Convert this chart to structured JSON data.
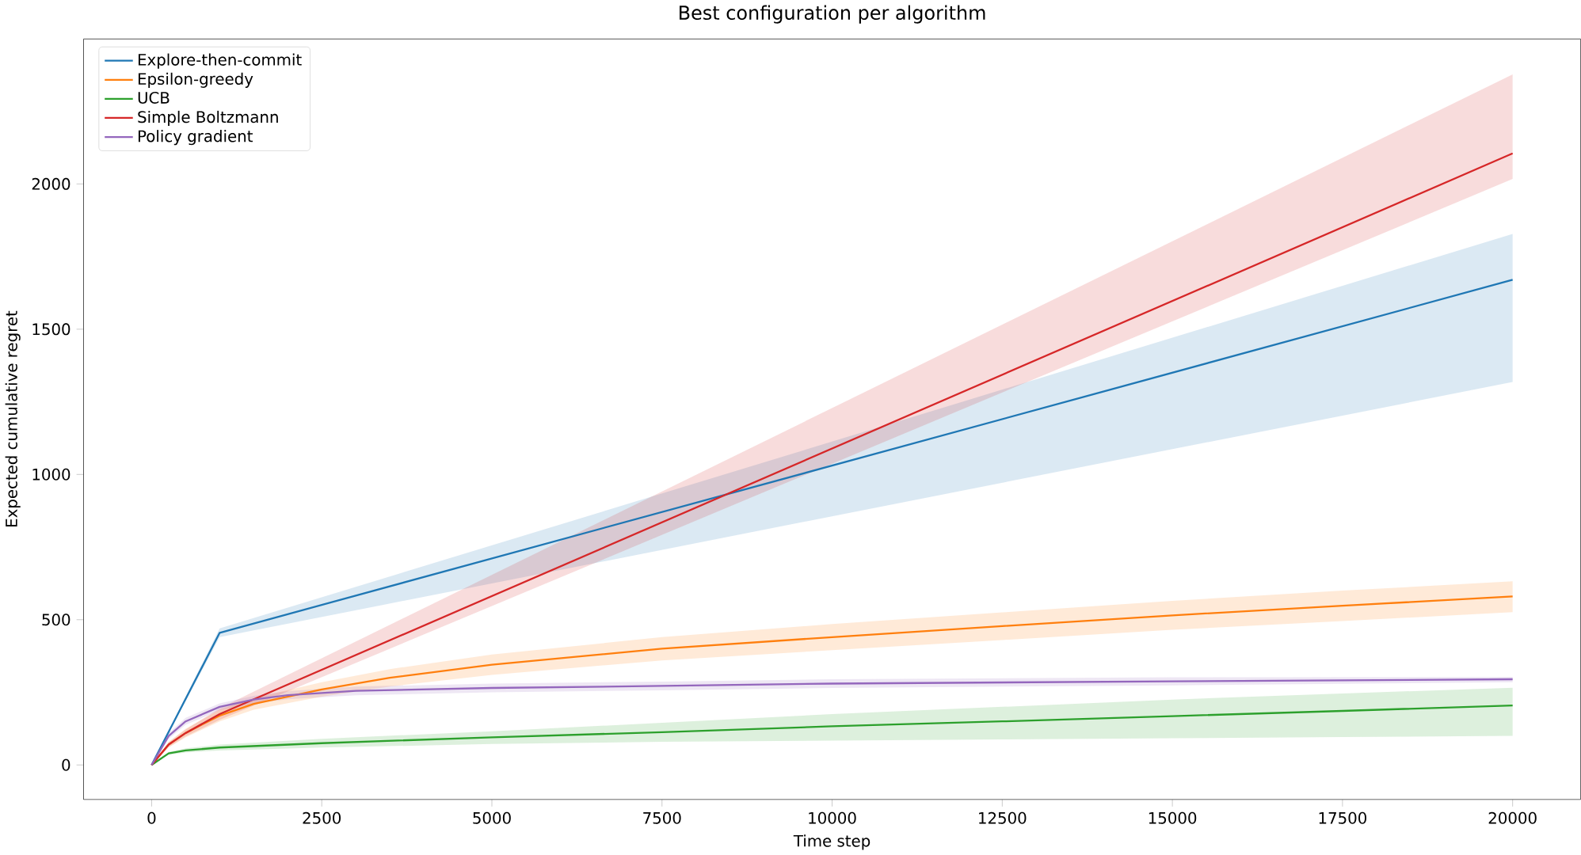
{
  "chart_data": {
    "type": "line",
    "title": "Best configuration per algorithm",
    "xlabel": "Time step",
    "ylabel": "Expected cumulative regret",
    "xlim": [
      -1000,
      21000
    ],
    "ylim": [
      -119,
      2499
    ],
    "xticks": [
      0,
      2500,
      5000,
      7500,
      10000,
      12500,
      15000,
      17500,
      20000
    ],
    "yticks": [
      0,
      500,
      1000,
      1500,
      2000
    ],
    "legend": "top left",
    "grid": false,
    "marker": "none",
    "line_style": "solid",
    "series": [
      {
        "name": "Explore-then-commit",
        "color": "#1f77b4",
        "x": [
          0,
          1000,
          20000
        ],
        "values": [
          0,
          455,
          1670
        ],
        "lower": [
          0,
          440,
          1318
        ],
        "upper": [
          0,
          470,
          1828
        ]
      },
      {
        "name": "Epsilon-greedy",
        "color": "#ff7f0e",
        "x": [
          0,
          250,
          500,
          1000,
          1500,
          2500,
          3500,
          5000,
          7500,
          10000,
          12500,
          15000,
          17500,
          20000
        ],
        "values": [
          0,
          70,
          110,
          170,
          210,
          260,
          300,
          345,
          400,
          440,
          478,
          515,
          548,
          580
        ],
        "lower": [
          0,
          60,
          95,
          150,
          190,
          235,
          270,
          310,
          360,
          395,
          430,
          465,
          495,
          526
        ],
        "upper": [
          0,
          80,
          125,
          190,
          230,
          285,
          330,
          380,
          440,
          485,
          525,
          565,
          600,
          632
        ]
      },
      {
        "name": "UCB",
        "color": "#2ca02c",
        "x": [
          0,
          250,
          500,
          1000,
          2500,
          5000,
          7500,
          10000,
          12500,
          15000,
          17500,
          20000
        ],
        "values": [
          0,
          40,
          50,
          60,
          75,
          95,
          113,
          133,
          150,
          168,
          186,
          205
        ],
        "lower": [
          0,
          35,
          43,
          50,
          60,
          72,
          80,
          84,
          88,
          92,
          96,
          100
        ],
        "upper": [
          0,
          45,
          57,
          70,
          90,
          116,
          145,
          175,
          200,
          225,
          246,
          266
        ]
      },
      {
        "name": "Simple Boltzmann",
        "color": "#d62728",
        "x": [
          0,
          250,
          500,
          1000,
          20000
        ],
        "values": [
          0,
          70,
          110,
          175,
          2105
        ],
        "lower": [
          0,
          62,
          98,
          155,
          2017
        ],
        "upper": [
          0,
          78,
          122,
          195,
          2377
        ]
      },
      {
        "name": "Policy gradient",
        "color": "#9467bd",
        "x": [
          0,
          250,
          500,
          1000,
          1500,
          2000,
          3000,
          5000,
          7500,
          10000,
          15000,
          20000
        ],
        "values": [
          0,
          100,
          150,
          200,
          225,
          240,
          255,
          265,
          272,
          280,
          288,
          295
        ],
        "lower": [
          0,
          90,
          138,
          188,
          212,
          226,
          240,
          250,
          257,
          265,
          274,
          285
        ],
        "upper": [
          0,
          110,
          162,
          212,
          238,
          254,
          270,
          280,
          287,
          295,
          302,
          303
        ]
      }
    ]
  }
}
